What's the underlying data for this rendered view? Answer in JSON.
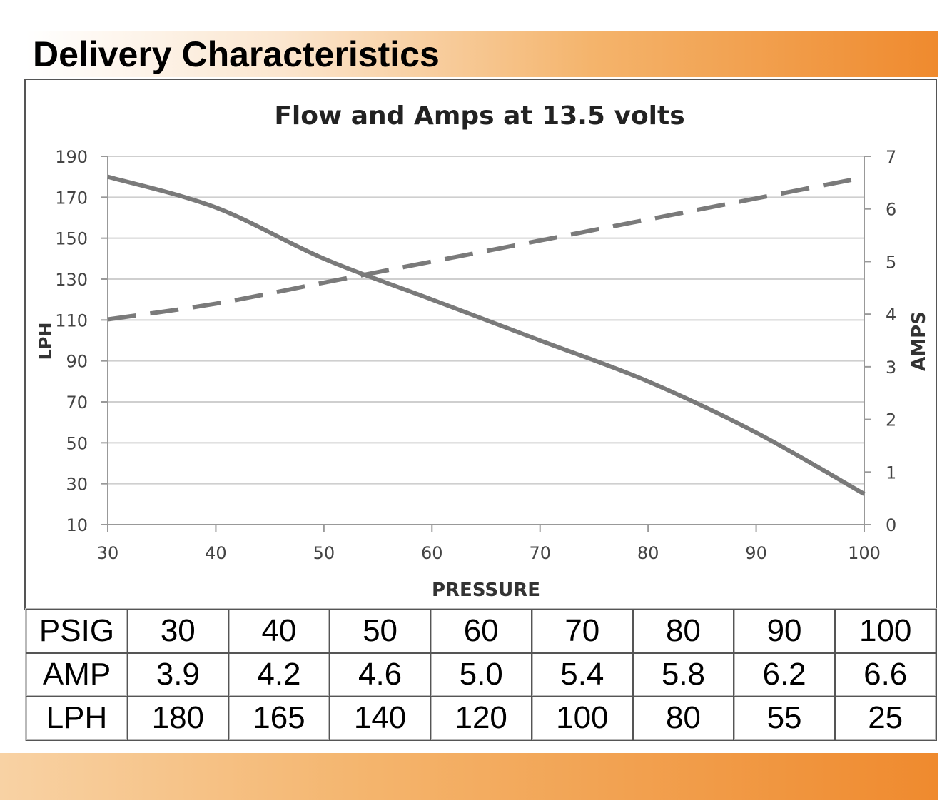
{
  "header": {
    "title": "Delivery Characteristics"
  },
  "chart_data": {
    "type": "line",
    "title": "Flow and Amps at 13.5 volts",
    "xlabel": "PRESSURE",
    "ylabel": "LPH",
    "y2label": "AMPS",
    "x": [
      30,
      40,
      50,
      60,
      70,
      80,
      90,
      100
    ],
    "xlim": [
      30,
      100
    ],
    "ylim": [
      10,
      190
    ],
    "y2lim": [
      0,
      7
    ],
    "x_ticks": [
      "30",
      "40",
      "50",
      "60",
      "70",
      "80",
      "90",
      "100"
    ],
    "y_ticks": [
      "190",
      "170",
      "150",
      "130",
      "110",
      "90",
      "70",
      "50",
      "30",
      "10"
    ],
    "y2_ticks": [
      "7",
      "6",
      "5",
      "4",
      "3",
      "2",
      "1",
      "0"
    ],
    "grid": true,
    "series": [
      {
        "name": "LPH",
        "axis": "left",
        "style": "solid",
        "color": "#7a7a7a",
        "values": [
          180,
          165,
          140,
          120,
          100,
          80,
          55,
          25
        ]
      },
      {
        "name": "AMP",
        "axis": "right",
        "style": "dashed",
        "color": "#7a7a7a",
        "values": [
          3.9,
          4.2,
          4.6,
          5.0,
          5.4,
          5.8,
          6.2,
          6.6
        ]
      }
    ]
  },
  "table": {
    "rows": [
      {
        "label": "PSIG",
        "cells": [
          "30",
          "40",
          "50",
          "60",
          "70",
          "80",
          "90",
          "100"
        ]
      },
      {
        "label": "AMP",
        "cells": [
          "3.9",
          "4.2",
          "4.6",
          "5.0",
          "5.4",
          "5.8",
          "6.2",
          "6.6"
        ]
      },
      {
        "label": "LPH",
        "cells": [
          "180",
          "165",
          "140",
          "120",
          "100",
          "80",
          "55",
          "25"
        ]
      }
    ]
  }
}
